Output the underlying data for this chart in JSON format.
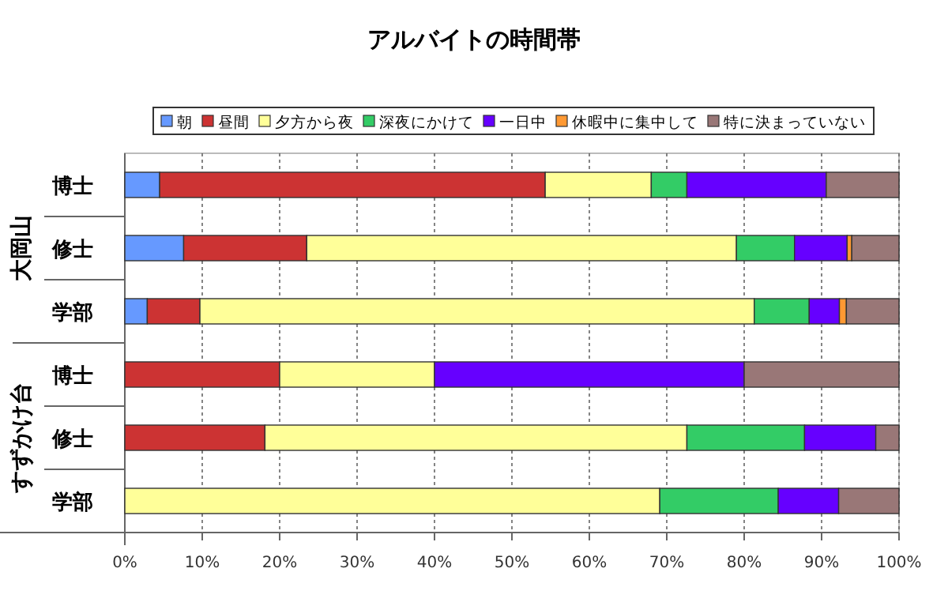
{
  "chart_data": {
    "type": "bar",
    "orientation": "horizontal",
    "stacked": true,
    "title": "アルバイトの時間帯",
    "categories": [
      "博士",
      "修士",
      "学部",
      "博士",
      "修士",
      "学部"
    ],
    "annotations": [
      "大岡山",
      "すずかけ台"
    ],
    "series": [
      {
        "name": "朝",
        "color": "#6699ff",
        "values": [
          4.5,
          7.6,
          2.9,
          0,
          0,
          0
        ]
      },
      {
        "name": "昼間",
        "color": "#cc3333",
        "values": [
          49.8,
          15.9,
          6.8,
          20,
          18.1,
          0
        ]
      },
      {
        "name": "夕方から夜",
        "color": "#ffff99",
        "values": [
          13.7,
          55.5,
          71.6,
          20,
          54.5,
          69.1
        ]
      },
      {
        "name": "深夜にかけて",
        "color": "#33cc66",
        "values": [
          4.6,
          7.5,
          7.1,
          0,
          15.2,
          15.3
        ]
      },
      {
        "name": "一日中",
        "color": "#6600ff",
        "values": [
          18.0,
          6.8,
          3.9,
          40,
          9.2,
          7.8
        ]
      },
      {
        "name": "休暇中に集中して",
        "color": "#ff9933",
        "values": [
          0,
          0.6,
          0.9,
          0,
          0,
          0
        ]
      },
      {
        "name": "特に決まっていない",
        "color": "#997777",
        "values": [
          9.4,
          6.1,
          6.8,
          20,
          3.0,
          7.8
        ]
      }
    ],
    "xlim": [
      0,
      100
    ],
    "xticks": [
      {
        "value": 0,
        "label": "0%"
      },
      {
        "value": 10,
        "label": "10%"
      },
      {
        "value": 20,
        "label": "20%"
      },
      {
        "value": 30,
        "label": "30%"
      },
      {
        "value": 40,
        "label": "40%"
      },
      {
        "value": 50,
        "label": "50%"
      },
      {
        "value": 60,
        "label": "60%"
      },
      {
        "value": 70,
        "label": "70%"
      },
      {
        "value": 80,
        "label": "80%"
      },
      {
        "value": 90,
        "label": "90%"
      },
      {
        "value": 100,
        "label": "100%"
      }
    ],
    "grid": "x",
    "legend": "top"
  }
}
